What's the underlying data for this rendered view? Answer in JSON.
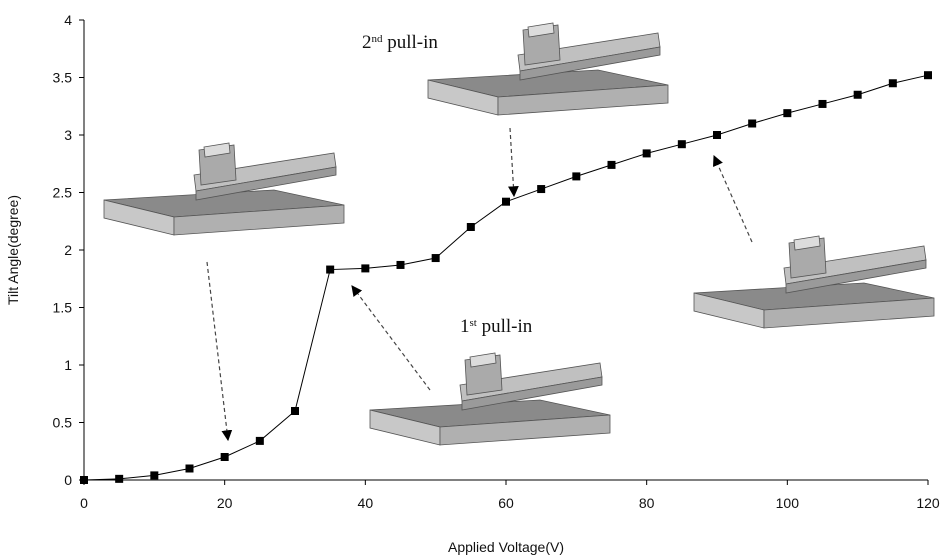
{
  "chart_data": {
    "type": "line",
    "x_label": "Applied Voltage(V)",
    "y_label": "Tilt Angle(degree)",
    "x": [
      0,
      5,
      10,
      15,
      20,
      25,
      30,
      35,
      40,
      45,
      50,
      55,
      60,
      65,
      70,
      75,
      80,
      85,
      90,
      95,
      100,
      105,
      110,
      115,
      120
    ],
    "values": [
      0,
      0.01,
      0.04,
      0.1,
      0.2,
      0.34,
      0.6,
      1.83,
      1.84,
      1.87,
      1.93,
      2.2,
      2.42,
      2.53,
      2.64,
      2.74,
      2.84,
      2.92,
      3.0,
      3.1,
      3.19,
      3.27,
      3.35,
      3.45,
      3.52
    ],
    "color": "#000000",
    "xlim": [
      0,
      120
    ],
    "xticks": [
      0,
      20,
      40,
      60,
      80,
      100,
      120
    ],
    "ylim": [
      0,
      4
    ],
    "yticks": [
      0,
      0.5,
      1,
      1.5,
      2,
      2.5,
      3,
      3.5,
      4
    ],
    "annotations": [
      [
        "2",
        "nd",
        " pull-in"
      ],
      [
        "1",
        "st",
        " pull-in"
      ]
    ]
  }
}
